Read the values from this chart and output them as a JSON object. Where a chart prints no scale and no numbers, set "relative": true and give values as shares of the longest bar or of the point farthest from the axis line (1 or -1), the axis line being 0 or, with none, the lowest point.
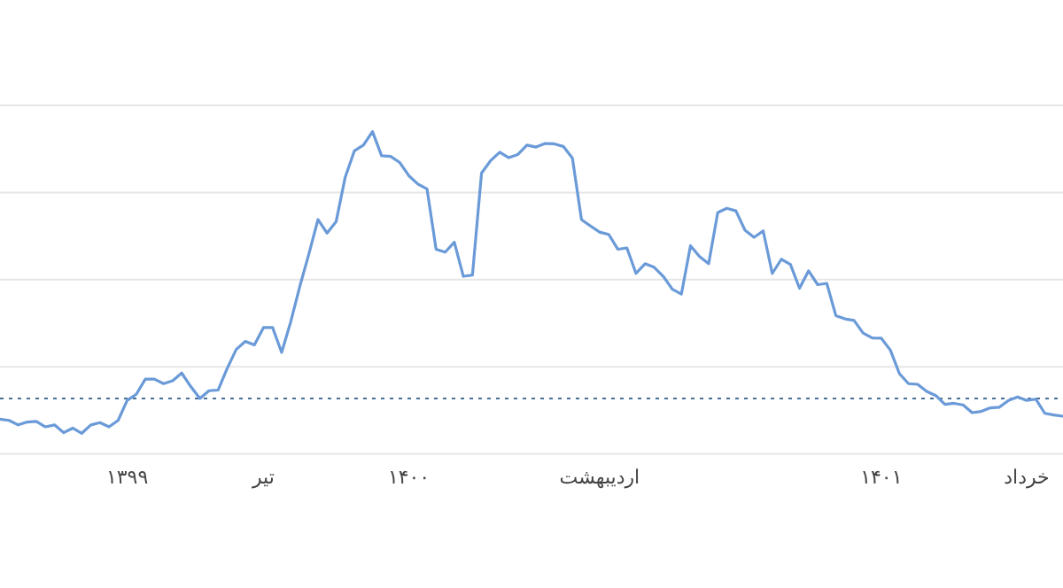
{
  "chart_data": {
    "type": "line",
    "relative": true,
    "grid": "y",
    "categories": [
      null,
      null,
      null,
      null,
      null,
      null,
      null,
      null,
      null,
      null,
      null,
      null,
      null,
      null,
      "۱۳۹۹",
      null,
      null,
      null,
      null,
      null,
      null,
      null,
      null,
      null,
      null,
      null,
      null,
      null,
      null,
      "تیر",
      null,
      null,
      null,
      null,
      null,
      null,
      null,
      null,
      null,
      null,
      null,
      null,
      null,
      null,
      null,
      "۱۴۰۰",
      null,
      null,
      null,
      null,
      null,
      null,
      null,
      null,
      null,
      null,
      null,
      null,
      null,
      null,
      null,
      null,
      null,
      null,
      null,
      null,
      "اردیبهشت",
      null,
      null,
      null,
      null,
      null,
      null,
      null,
      null,
      null,
      null,
      null,
      null,
      null,
      null,
      null,
      null,
      null,
      null,
      null,
      null,
      null,
      null,
      null,
      null,
      null,
      null,
      null,
      null,
      null,
      null,
      "۱۴۰۱",
      null,
      null,
      null,
      null,
      null,
      null,
      null,
      null,
      null,
      null,
      null,
      null,
      null,
      null,
      null,
      "خرداد",
      null,
      null,
      null,
      null
    ],
    "series": [
      {
        "color": "#6a9ad8",
        "line_style": "solid",
        "values": [
          0.108,
          0.104,
          0.09,
          0.099,
          0.101,
          0.084,
          0.09,
          0.066,
          0.08,
          0.064,
          0.09,
          0.097,
          0.084,
          0.104,
          0.166,
          0.185,
          0.232,
          0.232,
          0.218,
          0.227,
          0.251,
          0.209,
          0.172,
          0.196,
          0.198,
          0.265,
          0.324,
          0.349,
          0.338,
          0.392,
          0.392,
          0.315,
          0.41,
          0.52,
          0.621,
          0.727,
          0.685,
          0.721,
          0.859,
          0.94,
          0.958,
          1,
          0.925,
          0.923,
          0.904,
          0.863,
          0.837,
          0.822,
          0.635,
          0.626,
          0.657,
          0.551,
          0.555,
          0.871,
          0.91,
          0.936,
          0.919,
          0.929,
          0.958,
          0.952,
          0.963,
          0.962,
          0.954,
          0.918,
          0.727,
          0.707,
          0.688,
          0.681,
          0.635,
          0.639,
          0.56,
          0.59,
          0.579,
          0.551,
          0.511,
          0.496,
          0.646,
          0.612,
          0.59,
          0.749,
          0.762,
          0.754,
          0.694,
          0.672,
          0.692,
          0.56,
          0.604,
          0.588,
          0.514,
          0.568,
          0.525,
          0.529,
          0.429,
          0.419,
          0.414,
          0.375,
          0.36,
          0.359,
          0.322,
          0.249,
          0.218,
          0.216,
          0.194,
          0.181,
          0.154,
          0.157,
          0.152,
          0.128,
          0.132,
          0.143,
          0.145,
          0.166,
          0.177,
          0.166,
          0.17,
          0.126,
          0.121,
          0.117
        ]
      }
    ],
    "ref_lines": [
      {
        "axis": "y",
        "value": 0.172,
        "line_style": "dotted",
        "color": "#4a6f96"
      }
    ]
  }
}
